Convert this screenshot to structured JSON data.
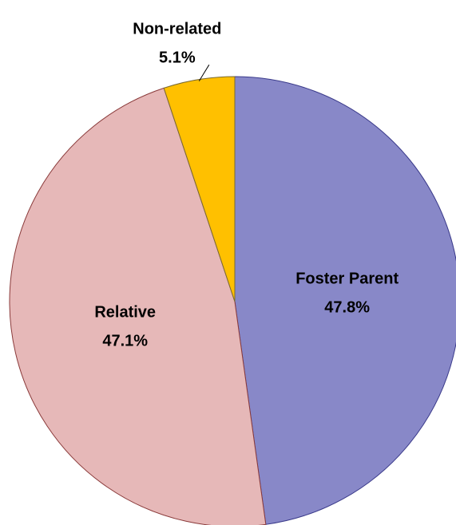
{
  "chart_data": {
    "type": "pie",
    "categories": [
      "Foster Parent",
      "Relative",
      "Non-related"
    ],
    "values": [
      47.8,
      47.1,
      5.1
    ],
    "value_labels": [
      "47.8%",
      "47.1%",
      "5.1%"
    ],
    "colors": [
      "#8888c8",
      "#e6b8b8",
      "#ffc000"
    ],
    "start_angle": 0,
    "direction": "clockwise"
  }
}
